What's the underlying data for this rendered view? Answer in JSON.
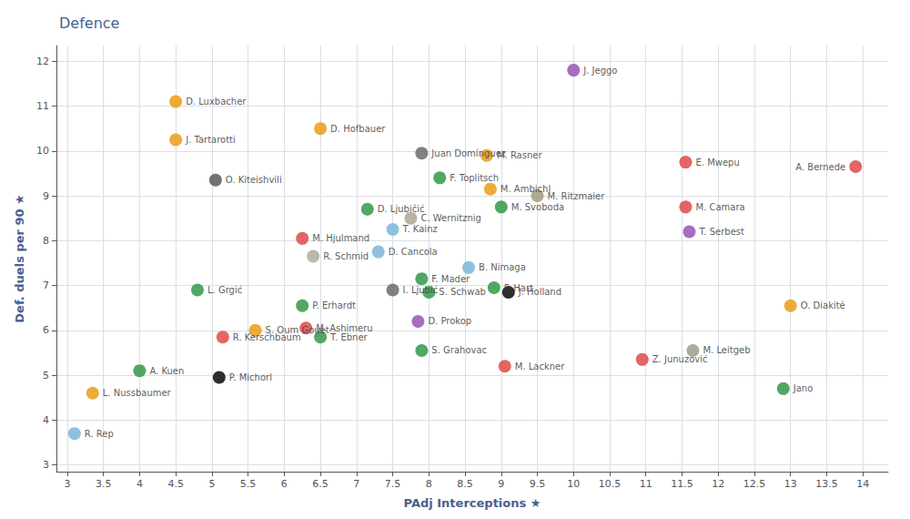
{
  "chart_data": {
    "type": "scatter",
    "title": "Defence",
    "xlabel": "PAdj Interceptions ★",
    "ylabel": "Def. duels per 90 ★",
    "xlim": [
      2.85,
      14.35
    ],
    "ylim": [
      2.85,
      12.35
    ],
    "xticks": [
      3,
      3.5,
      4,
      4.5,
      5,
      5.5,
      6,
      6.5,
      7,
      7.5,
      8,
      8.5,
      9,
      9.5,
      10,
      10.5,
      11,
      11.5,
      12,
      12.5,
      13,
      13.5,
      14
    ],
    "yticks": [
      3,
      4,
      5,
      6,
      7,
      8,
      9,
      10,
      11,
      12
    ],
    "grid": true,
    "point_labels": [
      "D. Luxbacher",
      "J. Tartarotti",
      "D. Hofbauer",
      "Juan Domínguez",
      "O. Kiteishvili",
      "J. Jeggo",
      "M. Rasner",
      "F. Toplitsch",
      "M. Ambichl",
      "M. Svoboda",
      "M. Ritzmaier",
      "E. Mwepu",
      "A. Bernede",
      "D. Ljubičić",
      "C. Wernitznig",
      "T. Kainz",
      "M. Hjulmand",
      "M. Camara",
      "T. Serbest",
      "R. Schmid",
      "D. Cancola",
      "F. Mader",
      "B. Nimaga",
      "I. Ljubić",
      "S. Schwab",
      "F. Hart",
      "J. Holland",
      "L. Grgić",
      "P. Erhardt",
      "S. Oum Gouet",
      "M. Ashimeru",
      "D. Prokop",
      "T. Ebner",
      "S. Grahovac",
      "R. Kerschbaum",
      "O. Diakité",
      "Z. Junuzović",
      "M. Leitgeb",
      "M. Lackner",
      "A. Kuen",
      "P. Michorl",
      "Jano",
      "L. Nussbaumer",
      "R. Rep"
    ],
    "x": [
      4.5,
      4.5,
      6.5,
      7.9,
      5.05,
      10.0,
      8.8,
      8.15,
      8.85,
      9.0,
      9.5,
      11.55,
      13.9,
      7.15,
      7.75,
      7.5,
      6.25,
      11.55,
      11.6,
      6.4,
      7.3,
      7.9,
      8.55,
      7.5,
      8.0,
      8.9,
      9.1,
      4.8,
      6.25,
      5.6,
      6.3,
      7.85,
      6.5,
      7.9,
      5.15,
      13.0,
      10.95,
      11.65,
      9.05,
      4.0,
      5.1,
      12.9,
      3.35,
      3.1
    ],
    "values": [
      11.1,
      10.25,
      10.5,
      9.95,
      9.35,
      11.8,
      9.9,
      9.4,
      9.15,
      8.75,
      9.0,
      9.75,
      9.65,
      8.7,
      8.5,
      8.25,
      8.05,
      8.75,
      8.2,
      7.65,
      7.75,
      7.15,
      7.4,
      6.9,
      6.85,
      6.95,
      6.85,
      6.9,
      6.55,
      6.0,
      6.05,
      6.2,
      5.85,
      5.55,
      5.85,
      6.55,
      5.35,
      5.55,
      5.2,
      5.1,
      4.95,
      4.7,
      4.6,
      3.7
    ],
    "colors": [
      "#e8a020",
      "#e8a020",
      "#e8a020",
      "#707070",
      "#606060",
      "#9b59b6",
      "#e8a020",
      "#3a9b50",
      "#e8a020",
      "#3a9b50",
      "#a0a080",
      "#e05050",
      "#e05050",
      "#3a9b50",
      "#b0a898",
      "#7eb8d8",
      "#e05050",
      "#e05050",
      "#9b59b6",
      "#b0b0a0",
      "#7eb8d8",
      "#3a9b50",
      "#7eb8d8",
      "#707070",
      "#3a9b50",
      "#3a9b50",
      "#111111",
      "#3a9b50",
      "#3a9b50",
      "#e8a020",
      "#e05050",
      "#9b59b6",
      "#3a9b50",
      "#3a9b50",
      "#e05050",
      "#e8a020",
      "#e05050",
      "#a0a090",
      "#e05050",
      "#3a9b50",
      "#111111",
      "#3a9b50",
      "#e8a020",
      "#7eb8d8"
    ]
  }
}
